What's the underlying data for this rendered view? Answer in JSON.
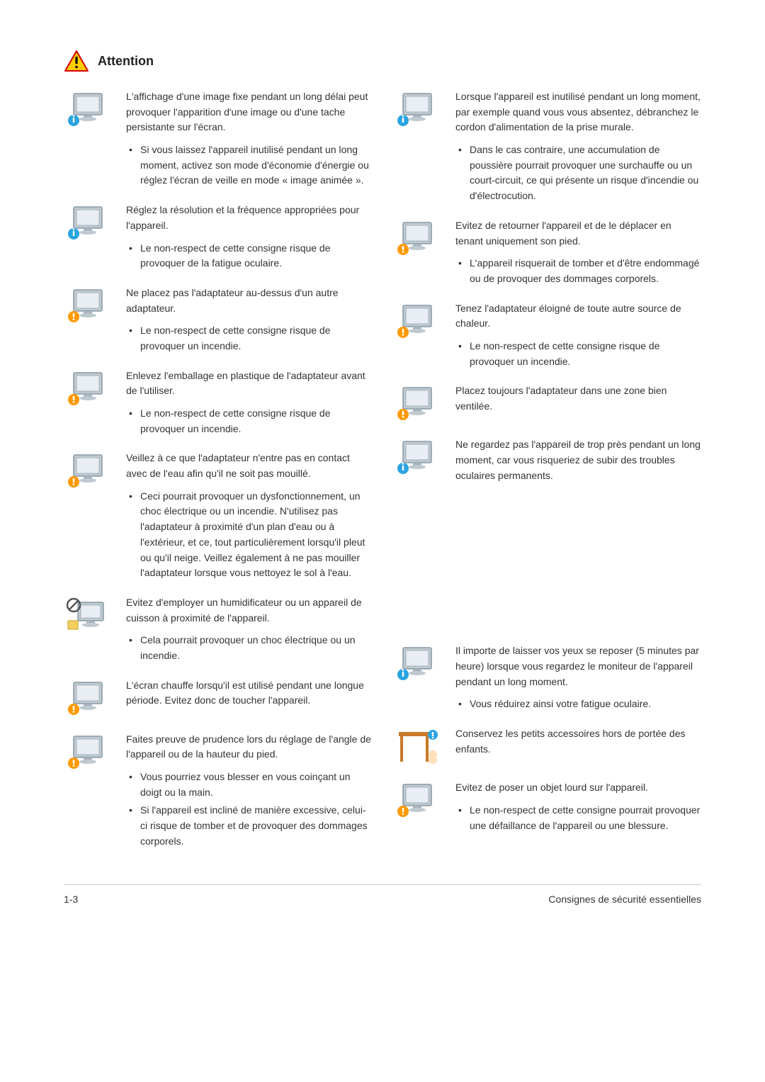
{
  "heading": "Attention",
  "footer_left": "1-3",
  "footer_right": "Consignes de sécurité essentielles",
  "colors": {
    "warning_triangle_fill": "#ffcc00",
    "warning_triangle_stroke": "#d40000",
    "info_badge": "#2aa4e0",
    "info_exclaim": "#ff9900",
    "monitor_body": "#bfc9d0",
    "monitor_screen": "#e8eef3",
    "prohibit": "#555555",
    "text": "#333333",
    "border": "#cccccc"
  },
  "left": [
    {
      "icon": "monitor-info",
      "lead": "L'affichage d'une image fixe pendant un long délai peut provoquer l'apparition d'une image ou d'une tache persistante sur l'écran.",
      "bullets": [
        "Si vous laissez l'appareil inutilisé pendant un long moment, activez son mode d'économie d'énergie ou réglez l'écran de veille en mode « image animée »."
      ]
    },
    {
      "icon": "monitor-resolution",
      "lead": "Réglez la résolution et la fréquence appropriées pour l'appareil.",
      "bullets": [
        "Le non-respect de cette consigne risque de provoquer de la fatigue oculaire."
      ]
    },
    {
      "icon": "adapter-stack",
      "lead": "Ne placez pas l'adaptateur au-dessus d'un autre adaptateur.",
      "bullets": [
        "Le non-respect de cette consigne risque de provoquer un incendie."
      ]
    },
    {
      "icon": "adapter-bag",
      "lead": "Enlevez l'emballage en plastique de l'adaptateur avant de l'utiliser.",
      "bullets": [
        "Le non-respect de cette consigne risque de provoquer un incendie."
      ]
    },
    {
      "icon": "adapter-water",
      "lead": "Veillez à ce que l'adaptateur n'entre pas en contact avec de l'eau afin qu'il ne soit pas mouillé.",
      "bullets": [
        "Ceci pourrait provoquer un dysfonctionnement, un choc électrique ou un incendie. N'utilisez pas l'adaptateur à proximité d'un plan d'eau ou à l'extérieur, et ce, tout particulièrement lorsqu'il pleut ou qu'il neige. Veillez également à ne pas mouiller l'adaptateur lorsque vous nettoyez le sol à l'eau."
      ]
    },
    {
      "icon": "humidifier",
      "lead": "Evitez d'employer un humidificateur ou un appareil de cuisson à proximité de l'appareil.",
      "bullets": [
        "Cela pourrait provoquer un choc électrique ou un incendie."
      ]
    },
    {
      "icon": "hot-screen",
      "lead": "L'écran chauffe lorsqu'il est utilisé pendant une longue période. Evitez donc de toucher l'appareil.",
      "bullets": []
    },
    {
      "icon": "tilt-adjust",
      "lead": "Faites preuve de prudence lors du réglage de l'angle de l'appareil ou de la hauteur du pied.",
      "bullets": [
        "Vous pourriez vous blesser en vous coinçant un doigt ou la main.",
        "Si l'appareil est incliné de manière excessive, celui-ci risque de tomber et de provoquer des dommages corporels."
      ]
    }
  ],
  "right": [
    {
      "icon": "monitor-unplug",
      "lead": "Lorsque l'appareil est inutilisé pendant un long moment, par exemple quand vous vous absentez, débranchez le cordon d'alimentation de la prise murale.",
      "bullets": [
        "Dans le cas contraire, une accumulation de poussière pourrait provoquer une surchauffe ou un court-circuit, ce qui présente un risque d'incendie ou d'électrocution."
      ]
    },
    {
      "icon": "upside-down",
      "lead": "Evitez de retourner l'appareil et de le déplacer en tenant uniquement son pied.",
      "bullets": [
        "L'appareil risquerait de tomber et d'être endommagé ou de provoquer des dommages corporels."
      ]
    },
    {
      "icon": "heater",
      "lead": "Tenez l'adaptateur éloigné de toute autre source de chaleur.",
      "bullets": [
        "Le non-respect de cette consigne risque de provoquer un incendie."
      ]
    },
    {
      "icon": "ventilated",
      "lead": "Placez toujours l'adaptateur dans une zone bien ventilée.",
      "bullets": []
    },
    {
      "icon": "eye-distance",
      "lead": "Ne regardez pas l'appareil de trop près pendant un long moment, car vous risqueriez de subir des troubles oculaires permanents.",
      "bullets": []
    },
    {
      "icon": "eye-rest",
      "lead": "Il importe de laisser vos yeux se reposer (5 minutes par heure) lorsque vous regardez le moniteur de l'appareil pendant un long moment.",
      "bullets": [
        "Vous réduirez ainsi votre fatigue oculaire."
      ]
    },
    {
      "icon": "small-parts",
      "lead": "Conservez les petits accessoires hors de portée des enfants.",
      "bullets": []
    },
    {
      "icon": "heavy-object",
      "lead": "Evitez de poser un objet lourd sur l'appareil.",
      "bullets": [
        "Le non-respect de cette consigne pourrait provoquer une défaillance de l'appareil ou une blessure."
      ]
    }
  ]
}
